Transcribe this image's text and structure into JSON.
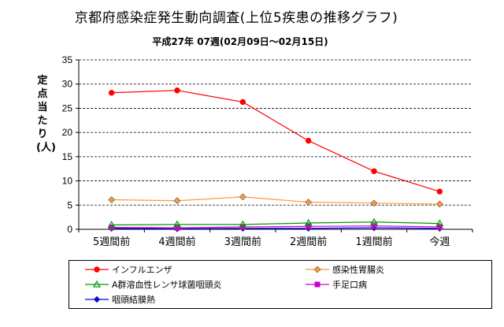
{
  "chart_data": {
    "type": "line",
    "title": "京都府感染症発生動向調査(上位5疾患の推移グラフ)",
    "subtitle": "平成27年 07週(02月09日〜02月15日)",
    "xlabel": "",
    "ylabel": "定点当たり(人)",
    "categories": [
      "5週間前",
      "4週間前",
      "3週間前",
      "2週間前",
      "1週間前",
      "今週"
    ],
    "ylim": [
      0,
      35
    ],
    "yticks": [
      "0",
      "5",
      "10",
      "15",
      "20",
      "25",
      "30",
      "35"
    ],
    "grid": "horizontal dashed",
    "legend_position": "bottom",
    "series": [
      {
        "name": "インフルエンザ",
        "color": "#ff0000",
        "marker": "circle",
        "values": [
          28.2,
          28.7,
          26.3,
          18.3,
          12.0,
          7.8
        ]
      },
      {
        "name": "感染性胃腸炎",
        "color": "#ff9933",
        "marker": "diamond",
        "values": [
          6.1,
          5.9,
          6.7,
          5.6,
          5.4,
          5.2
        ]
      },
      {
        "name": "A群溶血性レンサ球菌咽頭炎",
        "color": "#009900",
        "marker": "triangle",
        "values": [
          0.9,
          1.0,
          1.0,
          1.3,
          1.5,
          1.2
        ]
      },
      {
        "name": "手足口病",
        "color": "#cc00cc",
        "marker": "square",
        "values": [
          0.4,
          0.3,
          0.5,
          0.6,
          0.7,
          0.5
        ]
      },
      {
        "name": "咽頭結膜熱",
        "color": "#0000ff",
        "marker": "diamond",
        "values": [
          0.2,
          0.1,
          0.2,
          0.2,
          0.3,
          0.2
        ]
      }
    ]
  }
}
